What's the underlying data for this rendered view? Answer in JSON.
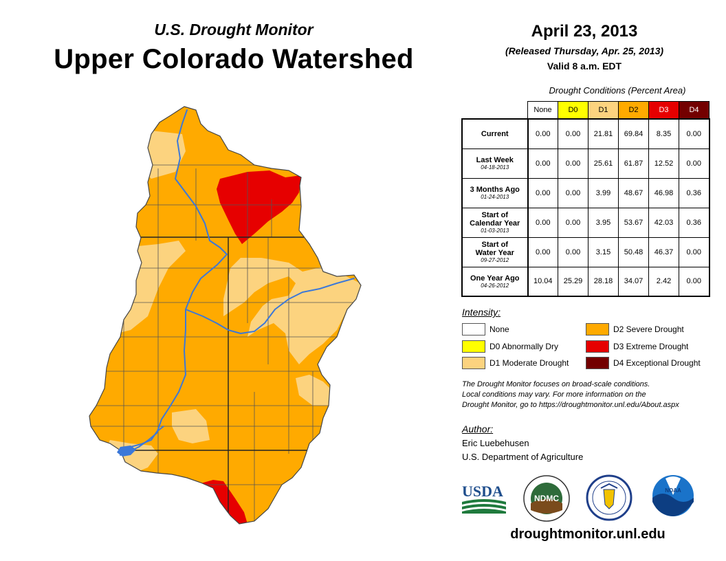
{
  "header": {
    "subtitle": "U.S. Drought Monitor",
    "title": "Upper Colorado Watershed",
    "date": "April 23, 2013",
    "released": "(Released Thursday, Apr. 25, 2013)",
    "valid": "Valid 8 a.m. EDT"
  },
  "colors": {
    "none": "#ffffff",
    "d0": "#ffff00",
    "d1": "#fcd37f",
    "d2": "#ffaa00",
    "d3": "#e60000",
    "d4": "#730000",
    "river": "#3c78d8",
    "boundary": "#555555"
  },
  "table": {
    "title": "Drought Conditions (Percent Area)",
    "columns": [
      "None",
      "D0",
      "D1",
      "D2",
      "D3",
      "D4"
    ],
    "rows": [
      {
        "label": "Current",
        "sub": "",
        "values": [
          "0.00",
          "0.00",
          "21.81",
          "69.84",
          "8.35",
          "0.00"
        ]
      },
      {
        "label": "Last Week",
        "sub": "04-18-2013",
        "values": [
          "0.00",
          "0.00",
          "25.61",
          "61.87",
          "12.52",
          "0.00"
        ]
      },
      {
        "label": "3 Months Ago",
        "sub": "01-24-2013",
        "values": [
          "0.00",
          "0.00",
          "3.99",
          "48.67",
          "46.98",
          "0.36"
        ]
      },
      {
        "label": "Start of Calendar Year",
        "sub": "01-03-2013",
        "values": [
          "0.00",
          "0.00",
          "3.95",
          "53.67",
          "42.03",
          "0.36"
        ]
      },
      {
        "label": "Start of Water Year",
        "sub": "09-27-2012",
        "values": [
          "0.00",
          "0.00",
          "3.15",
          "50.48",
          "46.37",
          "0.00"
        ]
      },
      {
        "label": "One Year Ago",
        "sub": "04-26-2012",
        "values": [
          "10.04",
          "25.29",
          "28.18",
          "34.07",
          "2.42",
          "0.00"
        ]
      }
    ]
  },
  "legend": {
    "title": "Intensity:",
    "items": [
      {
        "label": "None",
        "color": "#ffffff"
      },
      {
        "label": "D0 Abnormally Dry",
        "color": "#ffff00"
      },
      {
        "label": "D1 Moderate Drought",
        "color": "#fcd37f"
      },
      {
        "label": "D2 Severe Drought",
        "color": "#ffaa00"
      },
      {
        "label": "D3 Extreme Drought",
        "color": "#e60000"
      },
      {
        "label": "D4 Exceptional Drought",
        "color": "#730000"
      }
    ]
  },
  "note": {
    "line1": "The Drought Monitor focuses on broad-scale conditions.",
    "line2": "Local conditions may vary. For more information on the",
    "line3": "Drought Monitor, go to https://droughtmonitor.unl.edu/About.aspx"
  },
  "author": {
    "label": "Author:",
    "name": "Eric Luebehusen",
    "org": "U.S. Department of Agriculture"
  },
  "logos": {
    "usda": "USDA",
    "ndmc": "NDMC",
    "noaa": "NOAA"
  },
  "website": "droughtmonitor.unl.edu"
}
